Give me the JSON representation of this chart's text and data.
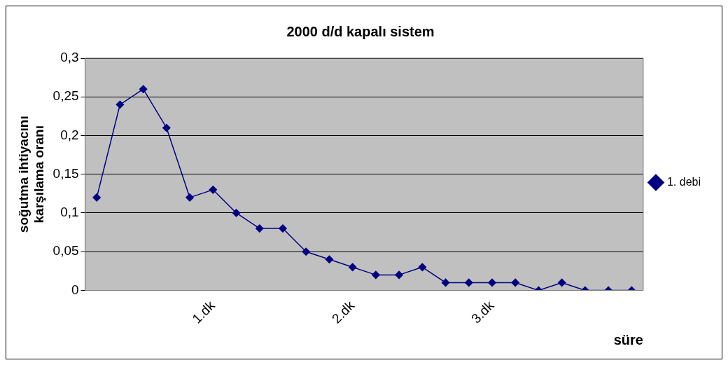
{
  "chart_data": {
    "type": "line",
    "title": "2000 d/d kapalı sistem",
    "xlabel": "süre",
    "ylabel": "soğutma ihtiyacını\nkarşılama oranı",
    "categories": [
      null,
      null,
      null,
      null,
      null,
      "1.dk",
      null,
      null,
      null,
      null,
      null,
      "2.dk",
      null,
      null,
      null,
      null,
      null,
      "3.dk",
      null,
      null,
      null,
      null,
      null,
      null
    ],
    "series": [
      {
        "name": "1. debi",
        "color": "#000080",
        "values": [
          0.12,
          0.24,
          0.26,
          0.21,
          0.12,
          0.13,
          0.1,
          0.08,
          0.08,
          0.05,
          0.04,
          0.03,
          0.02,
          0.02,
          0.03,
          0.01,
          0.01,
          0.01,
          0.01,
          0,
          0.01,
          0,
          0,
          0
        ]
      }
    ],
    "ylim": [
      0,
      0.3
    ],
    "yticks": [
      0,
      {
        "value": 0.05,
        "label": "0,05"
      },
      {
        "value": 0.1,
        "label": "0,1"
      },
      {
        "value": 0.15,
        "label": "0,15"
      },
      {
        "value": 0.2,
        "label": "0,2"
      },
      {
        "value": 0.25,
        "label": "0,25"
      },
      {
        "value": 0.3,
        "label": "0,3"
      }
    ],
    "grid": "y",
    "legend": "right",
    "marker": "diamond",
    "line_style": "solid"
  }
}
